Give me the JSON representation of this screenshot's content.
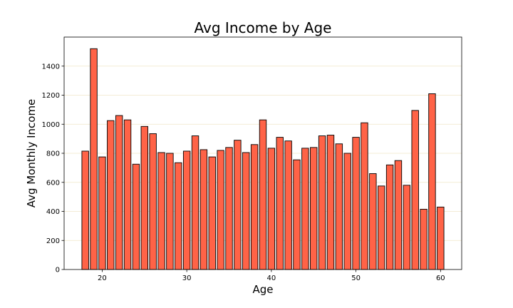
{
  "chart_data": {
    "type": "bar",
    "title": "Avg Income by Age",
    "xlabel": "Age",
    "ylabel": "Avg Monthly Income",
    "x": [
      18,
      19,
      20,
      21,
      22,
      23,
      24,
      25,
      26,
      27,
      28,
      29,
      30,
      31,
      32,
      33,
      34,
      35,
      36,
      37,
      38,
      39,
      40,
      41,
      42,
      43,
      44,
      45,
      46,
      47,
      48,
      49,
      50,
      51,
      52,
      53,
      54,
      55,
      56,
      57,
      58,
      59,
      60
    ],
    "values": [
      815,
      1520,
      775,
      1025,
      1060,
      1030,
      725,
      985,
      935,
      805,
      800,
      735,
      815,
      920,
      825,
      775,
      820,
      840,
      890,
      805,
      860,
      1030,
      835,
      910,
      885,
      755,
      835,
      840,
      920,
      925,
      865,
      800,
      910,
      1010,
      660,
      575,
      720,
      750,
      580,
      1095,
      415,
      1210,
      430
    ],
    "xlim": [
      15.5,
      62.5
    ],
    "ylim": [
      0,
      1600
    ],
    "xticks": [
      20,
      30,
      40,
      50,
      60
    ],
    "yticks": [
      0,
      200,
      400,
      600,
      800,
      1000,
      1200,
      1400
    ],
    "grid": {
      "axis": "y",
      "color": "#f0e6c8"
    },
    "bar_color": "#ff6347",
    "edge_color": "#000000",
    "legend": "none"
  }
}
